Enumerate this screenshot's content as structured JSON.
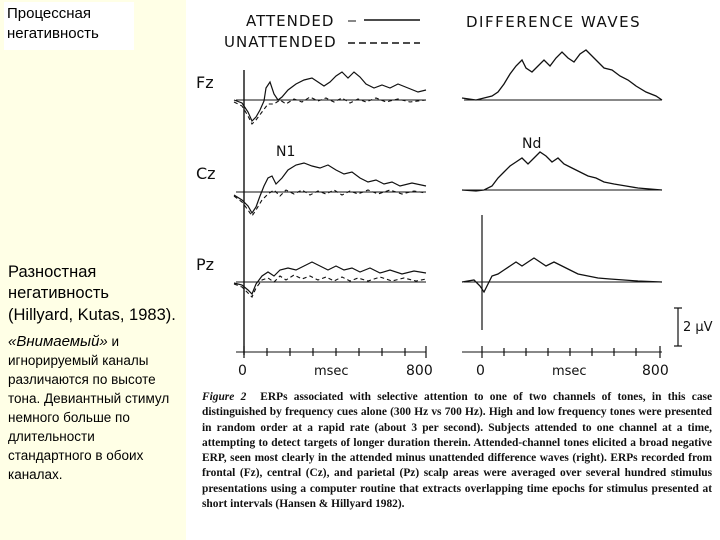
{
  "slide": {
    "title": "Процессная негативность",
    "heading": "Разностная негативность",
    "reference": "(Hillyard, Kutas, 1983).",
    "body_italic": "«Внимаемый»",
    "body_text": " и игнорируемый каналы различаются по высоте тона. Девиантный стимул немного больше по длительности стандартного в обоих каналах."
  },
  "figure": {
    "legend_attended": "ATTENDED",
    "legend_unattended": "UNATTENDED",
    "difference_title": "DIFFERENCE WAVES",
    "electrodes": [
      "Fz",
      "Cz",
      "Pz"
    ],
    "component_n1": "N1",
    "component_nd": "Nd",
    "x_start": "0",
    "x_unit": "msec",
    "x_end": "800",
    "scale_label": "2 μV",
    "caption_label": "Figure 2",
    "caption_text": "ERPs associated with selective attention to one of two channels of tones, in this case distinguished by frequency cues alone (300 Hz vs 700 Hz). High and low frequency tones were presented in random order at a rapid rate (about 3 per second). Subjects attended to one channel at a time, attempting to detect targets of longer duration therein. Attended-channel tones elicited a broad negative ERP, seen most clearly in the attended minus unattended difference waves (right). ERPs recorded from frontal (Fz), central (Cz), and parietal (Pz) scalp areas were averaged over several hundred stimulus presentations using a computer routine that extracts overlapping time epochs for stimulus presented at short intervals (Hansen & Hillyard 1982)."
  }
}
